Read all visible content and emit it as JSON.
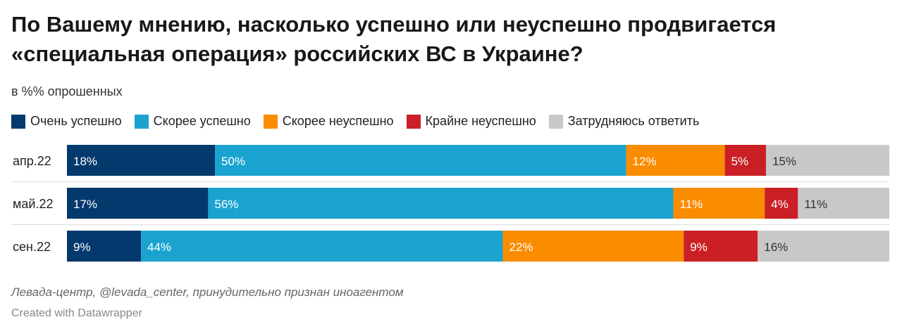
{
  "header": {
    "title": "По Вашему мнению, насколько успешно или неуспешно продвигается «специальная операция» российских ВС в Украине?",
    "subtitle": "в %% опрошенных"
  },
  "footer": {
    "source": "Левада-центр, @levada_center, принудительно признан иноагентом",
    "credit": "Created with Datawrapper"
  },
  "chart_data": {
    "type": "bar",
    "orientation": "horizontal",
    "stacked": true,
    "unit": "%",
    "categories": [
      "апр.22",
      "май.22",
      "сен.22"
    ],
    "series": [
      {
        "name": "Очень успешно",
        "color": "#03396c",
        "values": [
          18,
          17,
          9
        ]
      },
      {
        "name": "Скорее успешно",
        "color": "#1ba3d0",
        "values": [
          50,
          56,
          44
        ]
      },
      {
        "name": "Скорее неуспешно",
        "color": "#fa8c00",
        "values": [
          12,
          11,
          22
        ]
      },
      {
        "name": "Крайне неуспешно",
        "color": "#c91f25",
        "values": [
          5,
          4,
          9
        ]
      },
      {
        "name": "Затрудняюсь ответить",
        "color": "#c8c8c8",
        "values": [
          15,
          11,
          16
        ]
      }
    ],
    "label_colors": [
      "#ffffff",
      "#ffffff",
      "#ffffff",
      "#ffffff",
      "#333333"
    ],
    "legend_position": "top-left",
    "grid": false
  }
}
